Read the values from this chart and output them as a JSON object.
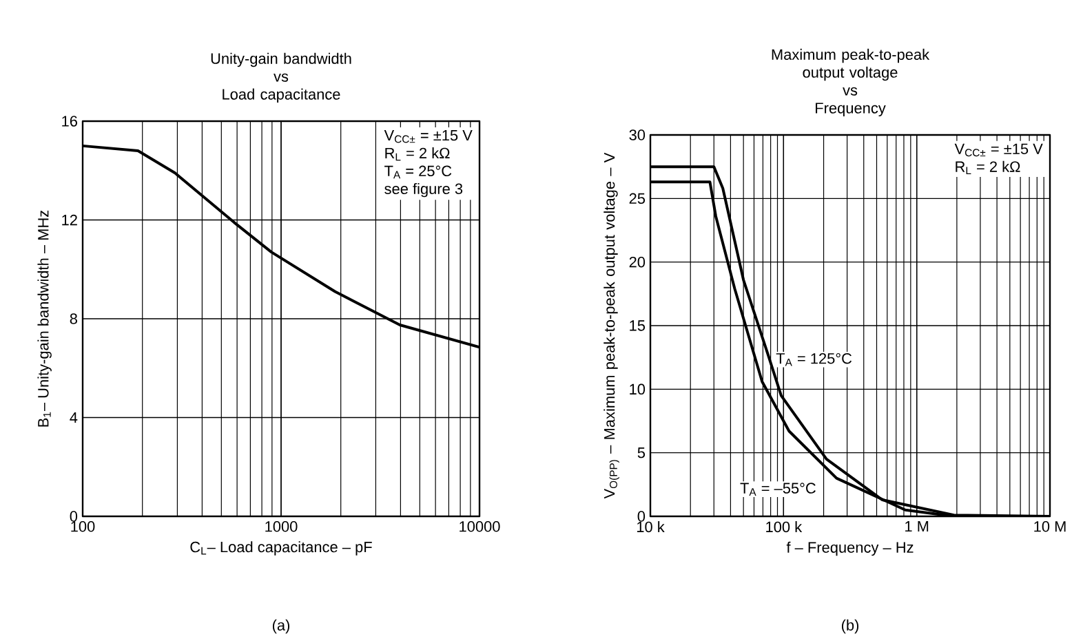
{
  "chart_data": [
    {
      "type": "line",
      "title": "Unity-gain bandwidth\nvs\nLoad capacitance",
      "xlabel": "C$_{L}$– Load capacitance – pF",
      "ylabel": "B$_{1}$– Unity-gain bandwidth – MHz",
      "series": [
        {
          "color": "#000000",
          "x": [
            100,
            190,
            292,
            580,
            893,
            1870,
            3970,
            10000
          ],
          "values": [
            15.0,
            14.8,
            13.9,
            11.9,
            10.7,
            9.1,
            7.75,
            6.85
          ]
        }
      ],
      "xlim": [
        100,
        10000
      ],
      "ylim": [
        0,
        16
      ],
      "xticks": [
        100,
        1000,
        10000
      ],
      "yticks": [
        0,
        4,
        8,
        12,
        16
      ],
      "log": "x",
      "grid": true,
      "legend": false,
      "line_style": "solid",
      "marker": "none",
      "annotations": [
        "V$_{CC±}$ = ±15 V",
        "R$_{L}$ = 2 kΩ",
        "T$_{A}$ = 25°C",
        "see figure 3",
        "(a)"
      ]
    },
    {
      "type": "line",
      "title": "Maximum peak-to-peak\noutput voltage\nvs\nFrequency",
      "xlabel": "f – Frequency – Hz",
      "ylabel": "V$_{O(PP)}$ – Maximum peak-to-peak output voltage – V",
      "series": [
        {
          "name": "T$_{A}$ = 125°C",
          "color": "#000000",
          "x": [
            10000,
            30000,
            35000,
            50000,
            76000,
            96000,
            210000,
            550000,
            1900000,
            10000000
          ],
          "values": [
            27.5,
            27.5,
            25.8,
            18.6,
            12.8,
            9.5,
            4.5,
            1.3,
            0.1,
            0
          ]
        },
        {
          "name": "T$_{A}$ = –55°C",
          "color": "#000000",
          "x": [
            10000,
            28000,
            31000,
            43000,
            69000,
            110000,
            250000,
            820000,
            1900000,
            10000000
          ],
          "values": [
            26.3,
            26.3,
            23.6,
            17.9,
            10.6,
            6.7,
            3.0,
            0.5,
            0,
            0
          ]
        }
      ],
      "xlim": [
        10000,
        10000000
      ],
      "ylim": [
        0,
        30
      ],
      "xticks": [
        {
          "value": 10000,
          "label": "10 k"
        },
        {
          "value": 100000,
          "label": "100 k"
        },
        {
          "value": 1000000,
          "label": "1 M"
        },
        {
          "value": 10000000,
          "label": "10 M"
        }
      ],
      "yticks": [
        0,
        5,
        10,
        15,
        20,
        25,
        30
      ],
      "log": "x",
      "grid": true,
      "legend": false,
      "line_style": "solid",
      "marker": "none",
      "annotations": [
        "V$_{CC±}$ = ±15 V",
        "R$_{L}$ = 2 kΩ",
        "(b)"
      ]
    }
  ]
}
